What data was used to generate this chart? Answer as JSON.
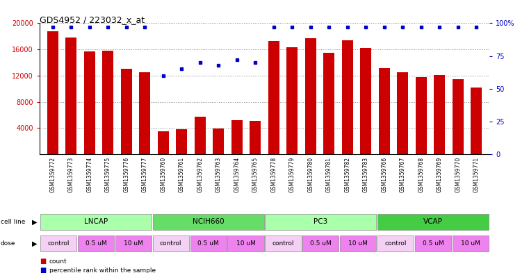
{
  "title": "GDS4952 / 223032_x_at",
  "samples": [
    "GSM1359772",
    "GSM1359773",
    "GSM1359774",
    "GSM1359775",
    "GSM1359776",
    "GSM1359777",
    "GSM1359760",
    "GSM1359761",
    "GSM1359762",
    "GSM1359763",
    "GSM1359764",
    "GSM1359765",
    "GSM1359778",
    "GSM1359779",
    "GSM1359780",
    "GSM1359781",
    "GSM1359782",
    "GSM1359783",
    "GSM1359766",
    "GSM1359767",
    "GSM1359768",
    "GSM1359769",
    "GSM1359770",
    "GSM1359771"
  ],
  "bar_values": [
    18800,
    17800,
    15700,
    15800,
    13000,
    12500,
    3500,
    3800,
    5700,
    3900,
    5200,
    5100,
    17300,
    16300,
    17700,
    15500,
    17400,
    16200,
    13200,
    12500,
    11800,
    12100,
    11500,
    10200
  ],
  "percentile_values": [
    97,
    97,
    97,
    97,
    97,
    97,
    60,
    65,
    70,
    68,
    72,
    70,
    97,
    97,
    97,
    97,
    97,
    97,
    97,
    97,
    97,
    97,
    97,
    97
  ],
  "cell_lines": [
    {
      "label": "LNCAP",
      "start": 0,
      "end": 6,
      "color": "#aaffaa"
    },
    {
      "label": "NCIH660",
      "start": 6,
      "end": 12,
      "color": "#66dd66"
    },
    {
      "label": "PC3",
      "start": 12,
      "end": 18,
      "color": "#aaffaa"
    },
    {
      "label": "VCAP",
      "start": 18,
      "end": 24,
      "color": "#44cc44"
    }
  ],
  "dose_groups": [
    {
      "label": "control",
      "xstart": 0,
      "xend": 2,
      "color": "#f5d0f5"
    },
    {
      "label": "0.5 uM",
      "xstart": 2,
      "xend": 4,
      "color": "#ee82ee"
    },
    {
      "label": "10 uM",
      "xstart": 4,
      "xend": 6,
      "color": "#ee82ee"
    },
    {
      "label": "control",
      "xstart": 6,
      "xend": 8,
      "color": "#f5d0f5"
    },
    {
      "label": "0.5 uM",
      "xstart": 8,
      "xend": 10,
      "color": "#ee82ee"
    },
    {
      "label": "10 uM",
      "xstart": 10,
      "xend": 12,
      "color": "#ee82ee"
    },
    {
      "label": "control",
      "xstart": 12,
      "xend": 14,
      "color": "#f5d0f5"
    },
    {
      "label": "0.5 uM",
      "xstart": 14,
      "xend": 16,
      "color": "#ee82ee"
    },
    {
      "label": "10 uM",
      "xstart": 16,
      "xend": 18,
      "color": "#ee82ee"
    },
    {
      "label": "control",
      "xstart": 18,
      "xend": 20,
      "color": "#f5d0f5"
    },
    {
      "label": "0.5 uM",
      "xstart": 20,
      "xend": 22,
      "color": "#ee82ee"
    },
    {
      "label": "10 uM",
      "xstart": 22,
      "xend": 24,
      "color": "#ee82ee"
    }
  ],
  "bar_color": "#cc0000",
  "percentile_color": "#0000cc",
  "ylim_left": [
    0,
    20000
  ],
  "ylim_right": [
    0,
    100
  ],
  "yticks_left": [
    4000,
    8000,
    12000,
    16000,
    20000
  ],
  "yticks_right": [
    0,
    25,
    50,
    75,
    100
  ],
  "ytick_labels_right": [
    "0",
    "25",
    "50",
    "75",
    "100%"
  ],
  "background_color": "#ffffff",
  "grid_color": "#888888",
  "tick_bg_color": "#d8d8d8"
}
